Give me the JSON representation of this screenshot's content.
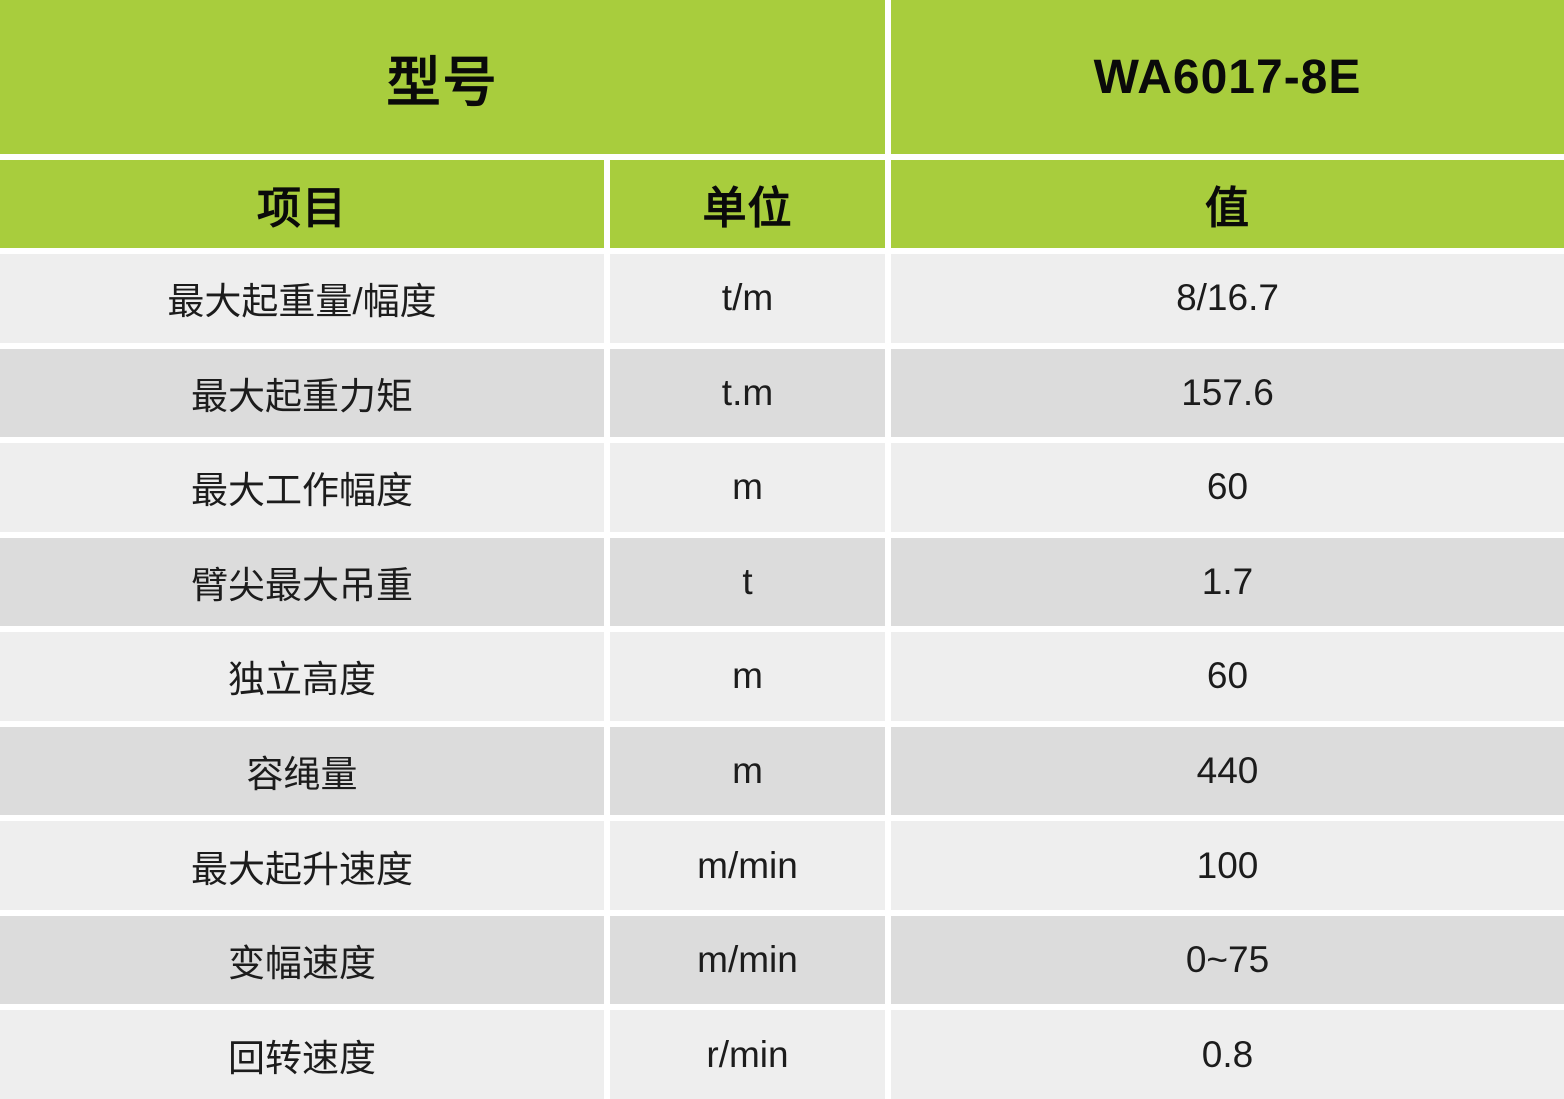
{
  "table": {
    "title_row": {
      "model_label": "型号",
      "model_value": "WA6017-8E"
    },
    "columns": {
      "item": "项目",
      "unit": "单位",
      "value": "值"
    },
    "rows": [
      {
        "item": "最大起重量/幅度",
        "unit": "t/m",
        "value": "8/16.7"
      },
      {
        "item": "最大起重力矩",
        "unit": "t.m",
        "value": "157.6"
      },
      {
        "item": "最大工作幅度",
        "unit": "m",
        "value": "60"
      },
      {
        "item": "臂尖最大吊重",
        "unit": "t",
        "value": "1.7"
      },
      {
        "item": "独立高度",
        "unit": "m",
        "value": "60"
      },
      {
        "item": "容绳量",
        "unit": "m",
        "value": "440"
      },
      {
        "item": "最大起升速度",
        "unit": "m/min",
        "value": "100"
      },
      {
        "item": "变幅速度",
        "unit": "m/min",
        "value": "0~75"
      },
      {
        "item": "回转速度",
        "unit": "r/min",
        "value": "0.8"
      }
    ],
    "colors": {
      "header_bg": "#a8cd3d",
      "row_light": "#eeeeee",
      "row_dark": "#dcdcdc",
      "separator": "#ffffff",
      "text": "#111111"
    }
  }
}
